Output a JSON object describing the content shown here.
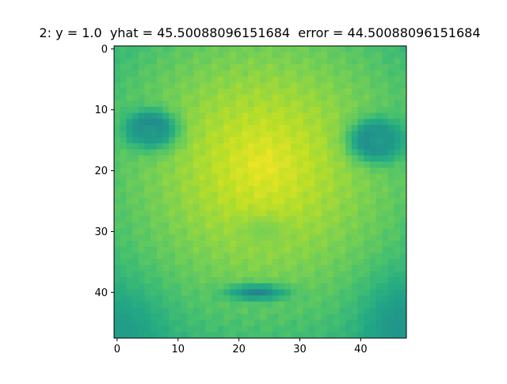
{
  "chart_data": {
    "type": "heatmap",
    "title": "2: y = 1.0  yhat = 45.50088096151684  error = 44.50088096151684",
    "xlabel": "",
    "ylabel": "",
    "grid_size": [
      48,
      48
    ],
    "colormap": "viridis",
    "value_range": [
      0,
      1
    ],
    "x_ticks": [
      0,
      10,
      20,
      30,
      40
    ],
    "y_ticks": [
      0,
      10,
      20,
      30,
      40
    ],
    "xlim": [
      -0.5,
      47.5
    ],
    "ylim": [
      47.5,
      -0.5
    ],
    "y_inverted": true,
    "grid": false,
    "legend": "none",
    "background_level": 0.86,
    "image_features": [
      {
        "name": "face-base",
        "kind": "gradient",
        "center": [
          24,
          19
        ],
        "radius": 36,
        "level_center": 0.97,
        "level_edge": 0.62
      },
      {
        "name": "left-eye",
        "kind": "blob",
        "center": [
          5.5,
          13
        ],
        "radius": [
          3.6,
          2.6
        ],
        "level": 0.1
      },
      {
        "name": "right-eye",
        "kind": "blob",
        "center": [
          42.5,
          15
        ],
        "radius": [
          3.8,
          3.0
        ],
        "level": 0.08
      },
      {
        "name": "left-eye-rim",
        "kind": "blob",
        "center": [
          5.5,
          13.5
        ],
        "radius": [
          5.2,
          4.0
        ],
        "level": 0.55
      },
      {
        "name": "right-eye-rim",
        "kind": "blob",
        "center": [
          43,
          15
        ],
        "radius": [
          5.6,
          4.4
        ],
        "level": 0.55
      },
      {
        "name": "nose-shadow",
        "kind": "blob",
        "center": [
          24,
          30
        ],
        "radius": [
          5.5,
          3.0
        ],
        "level": 0.8
      },
      {
        "name": "mouth",
        "kind": "blob",
        "center": [
          23,
          40
        ],
        "radius": [
          6.0,
          1.6
        ],
        "level": 0.45
      },
      {
        "name": "lower-left-corner",
        "kind": "blob",
        "center": [
          0,
          47
        ],
        "radius": [
          9,
          9
        ],
        "level": 0.55
      },
      {
        "name": "lower-right-corner",
        "kind": "blob",
        "center": [
          47,
          46
        ],
        "radius": [
          8,
          10
        ],
        "level": 0.52
      }
    ]
  }
}
